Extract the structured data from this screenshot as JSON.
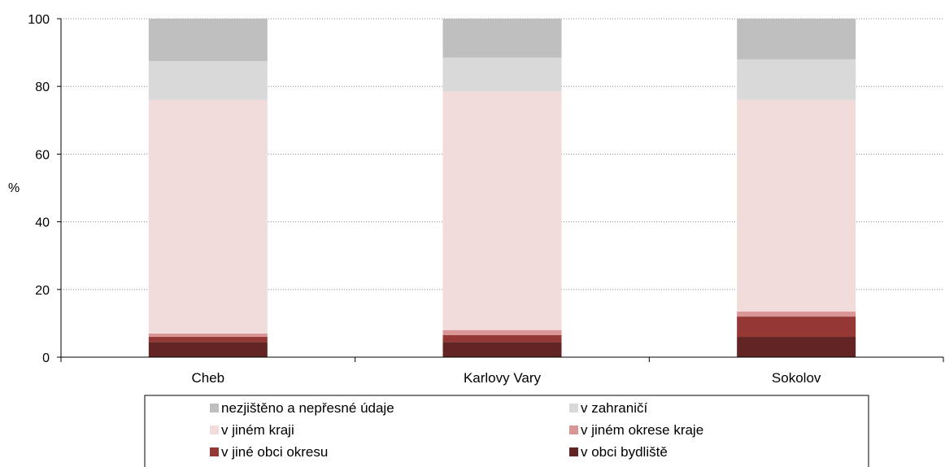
{
  "chart_data": {
    "type": "bar",
    "stacked": true,
    "ylabel": "%",
    "ylim": [
      0,
      100
    ],
    "yticks": [
      0,
      20,
      40,
      60,
      80,
      100
    ],
    "grid": true,
    "legend_position": "bottom",
    "categories": [
      "Cheb",
      "Karlovy Vary",
      "Sokolov"
    ],
    "series": [
      {
        "name": "v obci bydliště",
        "color": "#632523",
        "values": [
          4.5,
          4.5,
          6
        ]
      },
      {
        "name": "v jiné obci okresu",
        "color": "#953735",
        "values": [
          1.5,
          2,
          6
        ]
      },
      {
        "name": "v jiném okrese kraje",
        "color": "#d99694",
        "values": [
          1,
          1.5,
          1.5
        ]
      },
      {
        "name": "v jiném kraji",
        "color": "#f2dcdb",
        "values": [
          69,
          70.5,
          62.5
        ]
      },
      {
        "name": "v zahraničí",
        "color": "#d9d9d9",
        "values": [
          11.5,
          10,
          12
        ]
      },
      {
        "name": "nezjištěno a nepřesné údaje",
        "color": "#bfbfbf",
        "values": [
          12.5,
          11.5,
          12
        ]
      }
    ],
    "legend_order": [
      5,
      4,
      3,
      2,
      1,
      0
    ]
  }
}
